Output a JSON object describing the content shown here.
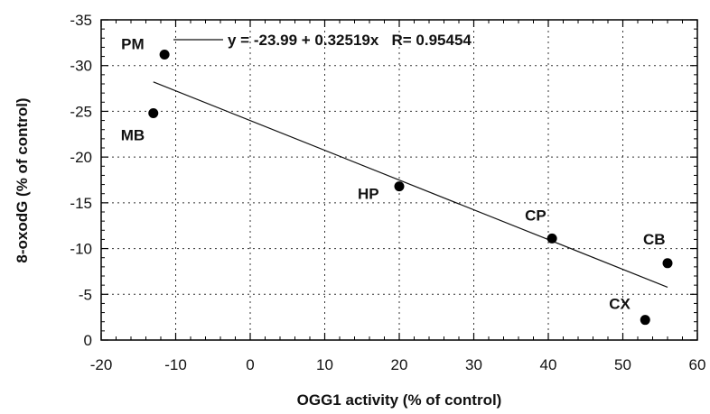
{
  "chart_data": {
    "type": "scatter",
    "xlabel": "OGG1 activity (% of control)",
    "ylabel": "8-oxodG (% of control)",
    "xlim": [
      -20,
      60
    ],
    "ylim": [
      0,
      -35
    ],
    "x_ticks": [
      -20,
      -10,
      0,
      10,
      20,
      30,
      40,
      50,
      60
    ],
    "y_ticks": [
      0,
      -5,
      -10,
      -15,
      -20,
      -25,
      -30,
      -35
    ],
    "grid": true,
    "points": [
      {
        "label": "PM",
        "x": -11.5,
        "y": -31.2
      },
      {
        "label": "MB",
        "x": -13.0,
        "y": -24.8
      },
      {
        "label": "HP",
        "x": 20.0,
        "y": -16.8
      },
      {
        "label": "CP",
        "x": 40.5,
        "y": -11.1
      },
      {
        "label": "CB",
        "x": 56.0,
        "y": -8.4
      },
      {
        "label": "CX",
        "x": 53.0,
        "y": -2.2
      }
    ],
    "fit_line": {
      "intercept": -23.99,
      "slope": 0.32519,
      "x_range": [
        -13,
        56
      ]
    },
    "legend": {
      "text": "y = -23.99 + 0.32519x   R= 0.95454",
      "position": "top"
    }
  }
}
